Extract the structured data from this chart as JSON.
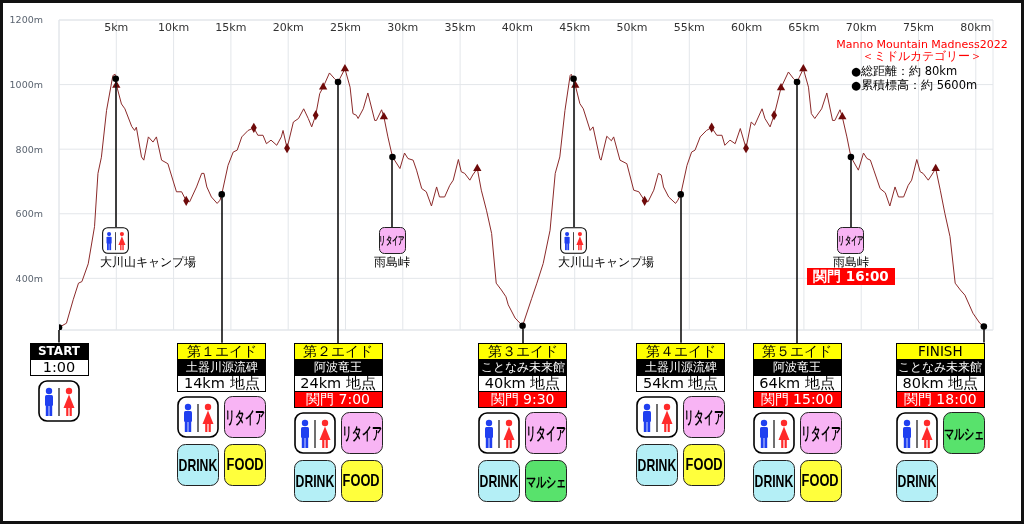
{
  "chart_data": {
    "type": "line",
    "title": "Manno Mountain Madness2022",
    "subtitle": "＜ミドルカテゴリー＞",
    "xlim": [
      0,
      81.5
    ],
    "xticks": [
      {
        "value": 0,
        "label": null
      },
      {
        "value": 5,
        "label": "5km"
      },
      {
        "value": 10,
        "label": "10km"
      },
      {
        "value": 15,
        "label": "15km"
      },
      {
        "value": 20,
        "label": "20km"
      },
      {
        "value": 25,
        "label": "25km"
      },
      {
        "value": 30,
        "label": "30km"
      },
      {
        "value": 35,
        "label": "35km"
      },
      {
        "value": 40,
        "label": "40km"
      },
      {
        "value": 45,
        "label": "45km"
      },
      {
        "value": 50,
        "label": "50km"
      },
      {
        "value": 55,
        "label": "55km"
      },
      {
        "value": 60,
        "label": "60km"
      },
      {
        "value": 65,
        "label": "65km"
      },
      {
        "value": 70,
        "label": "70km"
      },
      {
        "value": 75,
        "label": "75km"
      },
      {
        "value": 80,
        "label": "80km"
      }
    ],
    "ylim": [
      240,
      1200
    ],
    "yticks": [
      {
        "value": 400,
        "label": "400m"
      },
      {
        "value": 600,
        "label": "600m"
      },
      {
        "value": 800,
        "label": "800m"
      },
      {
        "value": 1000,
        "label": "1000m"
      },
      {
        "value": 1200,
        "label": "1200m"
      }
    ],
    "grid": true,
    "series": [
      {
        "type": "line",
        "color": "#8b2a2a",
        "x": [
          0,
          0.65,
          1.25,
          1.7,
          2.0,
          2.55,
          3.1,
          3.4,
          3.7,
          4.15,
          4.7,
          4.9,
          5.0,
          5.45,
          5.75,
          6.35,
          6.6,
          6.75,
          7.2,
          7.4,
          7.8,
          8.2,
          8.5,
          8.95,
          9.5,
          10.25,
          10.7,
          11.1,
          11.4,
          12.0,
          12.45,
          12.65,
          12.9,
          13.3,
          13.8,
          14.05,
          14.2,
          14.75,
          15.2,
          15.55,
          15.95,
          16.5,
          17.0,
          17.35,
          17.8,
          18.1,
          18.5,
          19.0,
          19.4,
          19.55,
          19.9,
          20.45,
          20.9,
          21.35,
          21.75,
          22.05,
          22.4,
          22.75,
          23.05,
          23.6,
          24.05,
          24.35,
          24.95,
          25.4,
          25.65,
          25.95,
          26.1,
          26.55,
          26.95,
          27.55,
          27.7,
          28.15,
          28.35,
          28.7,
          29.1,
          29.75,
          30.15,
          30.45,
          30.9,
          31.2,
          31.65,
          32.05,
          32.5,
          32.95,
          33.2,
          33.65,
          34.1,
          34.4,
          34.85,
          35.1,
          35.4,
          35.85,
          36.1,
          36.5,
          36.85,
          37.3,
          37.75,
          38.15,
          38.6,
          39.0,
          39.2,
          39.8,
          40.45,
          41.25,
          41.7,
          42.25,
          42.85,
          43.3,
          43.7,
          44.15,
          44.6,
          44.7,
          45.05,
          45.45,
          45.75,
          46.35,
          46.6,
          47.2,
          47.3,
          47.8,
          48.2,
          48.4,
          48.95,
          49.55,
          50.15,
          50.6,
          51.1,
          51.4,
          51.9,
          52.3,
          52.55,
          52.75,
          53.2,
          53.8,
          54.0,
          54.25,
          54.8,
          55.2,
          55.5,
          55.95,
          56.5,
          56.95,
          57.4,
          57.85,
          58.1,
          58.55,
          59.0,
          59.45,
          59.95,
          60.4,
          60.7,
          61.35,
          61.6,
          62.05,
          62.4,
          63.0,
          63.65,
          64.1,
          64.4,
          64.95,
          65.4,
          65.65,
          65.95,
          66.55,
          67.0,
          67.5,
          67.7,
          68.15,
          68.35,
          68.75,
          69.1,
          69.75,
          70.2,
          70.5,
          70.8,
          71.1,
          71.65,
          72.1,
          72.5,
          72.95,
          73.25,
          73.7,
          74.1,
          74.4,
          74.85,
          75.15,
          75.4,
          75.85,
          76.15,
          76.5,
          76.9,
          77.3,
          77.75,
          78.2,
          78.65,
          79.05,
          79.75,
          80.35,
          80.7
        ],
        "values": [
          248,
          261,
          335,
          385,
          390,
          445,
          560,
          725,
          775,
          920,
          1028,
          1032,
          1000,
          940,
          925,
          870,
          858,
          868,
          776,
          766,
          838,
          822,
          838,
          766,
          755,
          668,
          668,
          640,
          637,
          683,
          725,
          725,
          683,
          652,
          632,
          642,
          660,
          750,
          791,
          797,
          838,
          858,
          866,
          843,
          843,
          817,
          828,
          812,
          838,
          858,
          803,
          884,
          895,
          925,
          895,
          869,
          905,
          972,
          992,
          1036,
          1018,
          1008,
          1049,
          992,
          910,
          905,
          895,
          925,
          974,
          889,
          889,
          922,
          900,
          838,
          776,
          740,
          788,
          771,
          766,
          735,
          678,
          668,
          624,
          683,
          652,
          652,
          688,
          704,
          768,
          730,
          725,
          704,
          720,
          740,
          673,
          611,
          539,
          385,
          364,
          343,
          318,
          277,
          253,
          338,
          385,
          446,
          549,
          725,
          776,
          920,
          1028,
          1032,
          998,
          941,
          925,
          858,
          869,
          771,
          766,
          840,
          826,
          838,
          766,
          755,
          673,
          668,
          640,
          637,
          673,
          725,
          720,
          683,
          652,
          632,
          642,
          660,
          750,
          791,
          797,
          838,
          858,
          867,
          843,
          843,
          812,
          828,
          817,
          864,
          803,
          884,
          874,
          925,
          895,
          869,
          905,
          990,
          1039,
          1018,
          1008,
          1049,
          992,
          910,
          895,
          925,
          974,
          889,
          889,
          922,
          900,
          838,
          776,
          735,
          788,
          771,
          766,
          735,
          678,
          665,
          624,
          683,
          652,
          652,
          688,
          704,
          768,
          730,
          725,
          704,
          720,
          740,
          673,
          601,
          529,
          385,
          364,
          348,
          292,
          261,
          251
        ]
      },
      {
        "type": "scatter",
        "color": "#6e0a0a",
        "marker": "triangle",
        "x": [
          5.0,
          23.05,
          24.95,
          28.35,
          36.5,
          45.05,
          63.0,
          64.95,
          68.35,
          76.5
        ],
        "values": [
          998,
          992,
          1049,
          900,
          740,
          998,
          990,
          1049,
          900,
          740
        ]
      },
      {
        "type": "scatter",
        "color": "#6e0a0a",
        "marker": "diamond",
        "x": [
          11.1,
          17.0,
          19.9,
          22.4,
          51.1,
          56.95,
          59.95,
          62.4
        ],
        "values": [
          640,
          866,
          803,
          905,
          640,
          867,
          803,
          905
        ]
      },
      {
        "type": "scatter",
        "color": "#000000",
        "marker": "circle",
        "x": [
          0,
          4.95,
          14.2,
          24.35,
          29.1,
          40.45,
          44.9,
          54.25,
          64.4,
          69.1,
          80.7
        ],
        "values": [
          248,
          1018,
          660,
          1008,
          776,
          253,
          1018,
          660,
          1008,
          776,
          251
        ]
      }
    ],
    "annotations": [
      "●総距離：約 80km",
      "●累積標高：約 5600m",
      {
        "text": "START",
        "x": 0,
        "y": 248
      },
      "1:00",
      "大川山キャンプ場",
      {
        "text": "第１エイド",
        "x": 14.2,
        "y": 660
      },
      "土器川源流碑",
      "14km 地点",
      "リタイア",
      "DRINK",
      "FOOD",
      {
        "text": "第２エイド",
        "x": 24.35,
        "y": 1008
      },
      "阿波竜王",
      "24km 地点",
      "関門 7:00",
      "リタイア",
      "DRINK",
      "FOOD",
      {
        "text": "リタイア",
        "x": 29.1,
        "y": 776
      },
      "雨島峠",
      {
        "text": "第３エイド",
        "x": 40.45,
        "y": 253
      },
      "ことなみ未来館",
      "40km 地点",
      "関門 9:30",
      "リタイア",
      "DRINK",
      "マルシェ",
      "大川山キャンプ場",
      {
        "text": "第４エイド",
        "x": 54.25,
        "y": 660
      },
      "土器川源流碑",
      "54km 地点",
      "リタイア",
      "DRINK",
      "FOOD",
      {
        "text": "第５エイド",
        "x": 64.4,
        "y": 1008
      },
      "阿波竜王",
      "64km 地点",
      "関門 15:00",
      "リタイア",
      "DRINK",
      "FOOD",
      {
        "text": "リタイア",
        "x": 69.1,
        "y": 776
      },
      "雨島峠",
      "関門 16:00",
      {
        "text": "FINISH",
        "x": 80.7,
        "y": 251
      },
      "ことなみ未来館",
      "80km 地点",
      "関門 18:00",
      "マルシェ",
      "DRINK"
    ]
  }
}
